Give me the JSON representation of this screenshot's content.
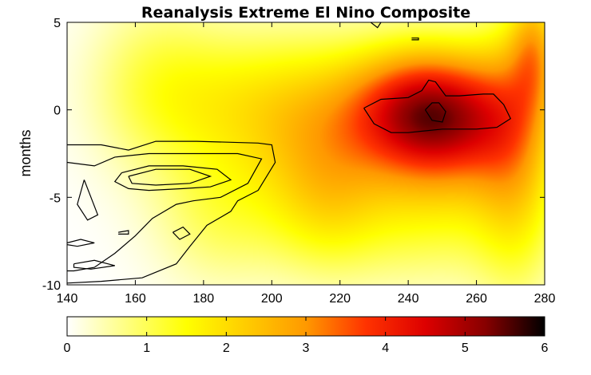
{
  "chart_data": {
    "type": "heatmap",
    "title": "Reanalysis Extreme El Nino Composite",
    "xlabel": "",
    "ylabel": "months",
    "xlim": [
      140,
      280
    ],
    "ylim": [
      -10,
      5
    ],
    "x_ticks": [
      "140",
      "160",
      "180",
      "200",
      "220",
      "240",
      "260",
      "280"
    ],
    "y_ticks": [
      "5",
      "0",
      "-5",
      "-10"
    ],
    "x_tick_values": [
      140,
      160,
      180,
      200,
      220,
      240,
      260,
      280
    ],
    "y_tick_values": [
      5,
      0,
      -5,
      -10
    ],
    "colorbar": {
      "ticks": [
        "0",
        "1",
        "2",
        "3",
        "4",
        "5",
        "6"
      ],
      "tick_values": [
        0,
        1,
        2,
        3,
        4,
        5,
        6
      ],
      "range": [
        0,
        6
      ],
      "colormap": [
        "#ffffff",
        "#ffff80",
        "#ffff00",
        "#ffcc00",
        "#ff9900",
        "#ff3300",
        "#dd0000",
        "#880000",
        "#000000"
      ]
    },
    "field_blobs": [
      {
        "x": 165,
        "y": 1.5,
        "sx": 14,
        "sy": 3.5,
        "amp": 0.9
      },
      {
        "x": 190,
        "y": 0.5,
        "sx": 18,
        "sy": 3.0,
        "amp": 1.2
      },
      {
        "x": 215,
        "y": -1.0,
        "sx": 16,
        "sy": 3.5,
        "amp": 1.6
      },
      {
        "x": 240,
        "y": 0.0,
        "sx": 14,
        "sy": 2.6,
        "amp": 2.9
      },
      {
        "x": 255,
        "y": -0.5,
        "sx": 14,
        "sy": 2.8,
        "amp": 3.0
      },
      {
        "x": 272,
        "y": -2.0,
        "sx": 9,
        "sy": 5.5,
        "amp": 1.9
      },
      {
        "x": 277,
        "y": 3.5,
        "sx": 5,
        "sy": 2.5,
        "amp": 1.8
      },
      {
        "x": 245,
        "y": -6.0,
        "sx": 20,
        "sy": 3.0,
        "amp": 1.1
      },
      {
        "x": 185,
        "y": -6.0,
        "sx": 14,
        "sy": 3.0,
        "amp": 0.9
      },
      {
        "x": 215,
        "y": -5.5,
        "sx": 12,
        "sy": 3.0,
        "amp": 1.0
      }
    ],
    "contours": [
      [
        [
          140,
          -2
        ],
        [
          150,
          -2
        ],
        [
          158,
          -2.3
        ],
        [
          166,
          -1.8
        ],
        [
          178,
          -1.8
        ],
        [
          196,
          -1.9
        ],
        [
          200,
          -2
        ],
        [
          201,
          -3
        ],
        [
          196,
          -4.6
        ],
        [
          190,
          -5.2
        ],
        [
          188,
          -5.8
        ],
        [
          181,
          -6.6
        ],
        [
          176,
          -7.8
        ],
        [
          172,
          -8.8
        ],
        [
          162,
          -9.6
        ],
        [
          150,
          -9.8
        ],
        [
          140,
          -9.9
        ]
      ],
      [
        [
          140,
          -3
        ],
        [
          148,
          -3.2
        ],
        [
          154,
          -2.7
        ],
        [
          164,
          -2.5
        ],
        [
          176,
          -2.5
        ],
        [
          190,
          -2.5
        ],
        [
          197,
          -2.8
        ],
        [
          193,
          -4.2
        ],
        [
          185,
          -5.0
        ],
        [
          177,
          -5.2
        ],
        [
          172,
          -5.4
        ],
        [
          165,
          -6.2
        ],
        [
          160,
          -7.2
        ],
        [
          154,
          -8.2
        ],
        [
          148,
          -9.0
        ],
        [
          142,
          -9.2
        ],
        [
          140,
          -9.2
        ]
      ],
      [
        [
          156,
          -3.6
        ],
        [
          164,
          -3.2
        ],
        [
          174,
          -3.2
        ],
        [
          184,
          -3.4
        ],
        [
          188,
          -4.0
        ],
        [
          182,
          -4.4
        ],
        [
          174,
          -4.5
        ],
        [
          164,
          -4.6
        ],
        [
          158,
          -4.5
        ],
        [
          154,
          -4.1
        ],
        [
          156,
          -3.6
        ]
      ],
      [
        [
          158,
          -3.8
        ],
        [
          166,
          -3.4
        ],
        [
          176,
          -3.4
        ],
        [
          182,
          -3.8
        ],
        [
          176,
          -4.2
        ],
        [
          166,
          -4.3
        ],
        [
          159,
          -4.2
        ],
        [
          158,
          -3.8
        ]
      ],
      [
        [
          145,
          -4.0
        ],
        [
          147,
          -5.0
        ],
        [
          149,
          -6.0
        ],
        [
          146,
          -6.3
        ],
        [
          143,
          -5.4
        ],
        [
          145,
          -4.0
        ]
      ],
      [
        [
          140,
          -7.6
        ],
        [
          144,
          -7.4
        ],
        [
          148,
          -7.6
        ],
        [
          143,
          -7.8
        ],
        [
          140,
          -7.7
        ]
      ],
      [
        [
          142,
          -8.8
        ],
        [
          148,
          -8.6
        ],
        [
          154,
          -8.9
        ],
        [
          147,
          -9.1
        ],
        [
          142,
          -9.0
        ],
        [
          142,
          -8.8
        ]
      ],
      [
        [
          171,
          -7.0
        ],
        [
          174,
          -6.7
        ],
        [
          176,
          -7.1
        ],
        [
          173,
          -7.4
        ],
        [
          171,
          -7.0
        ]
      ],
      [
        [
          155,
          -7.0
        ],
        [
          158,
          -6.9
        ],
        [
          158,
          -7.1
        ],
        [
          155,
          -7.1
        ]
      ],
      [
        [
          227,
          0.1
        ],
        [
          232,
          0.6
        ],
        [
          240,
          0.7
        ],
        [
          244,
          1.1
        ],
        [
          246,
          1.7
        ],
        [
          248,
          1.6
        ],
        [
          251,
          0.8
        ],
        [
          255,
          0.8
        ],
        [
          262,
          0.9
        ],
        [
          265,
          0.9
        ],
        [
          268,
          0.3
        ],
        [
          270,
          -0.5
        ],
        [
          266,
          -1.0
        ],
        [
          260,
          -1.1
        ],
        [
          250,
          -1.1
        ],
        [
          240,
          -1.3
        ],
        [
          235,
          -1.3
        ],
        [
          230,
          -0.8
        ],
        [
          227,
          0.1
        ]
      ],
      [
        [
          245,
          0.0
        ],
        [
          247,
          0.4
        ],
        [
          249,
          0.4
        ],
        [
          251,
          -0.1
        ],
        [
          250,
          -0.7
        ],
        [
          247,
          -0.6
        ],
        [
          245,
          0.0
        ]
      ],
      [
        [
          241,
          4.1
        ],
        [
          243,
          4.1
        ],
        [
          243,
          4.0
        ],
        [
          241,
          4.0
        ]
      ],
      [
        [
          229,
          5.0
        ],
        [
          231,
          4.7
        ],
        [
          232,
          5.0
        ]
      ]
    ]
  }
}
